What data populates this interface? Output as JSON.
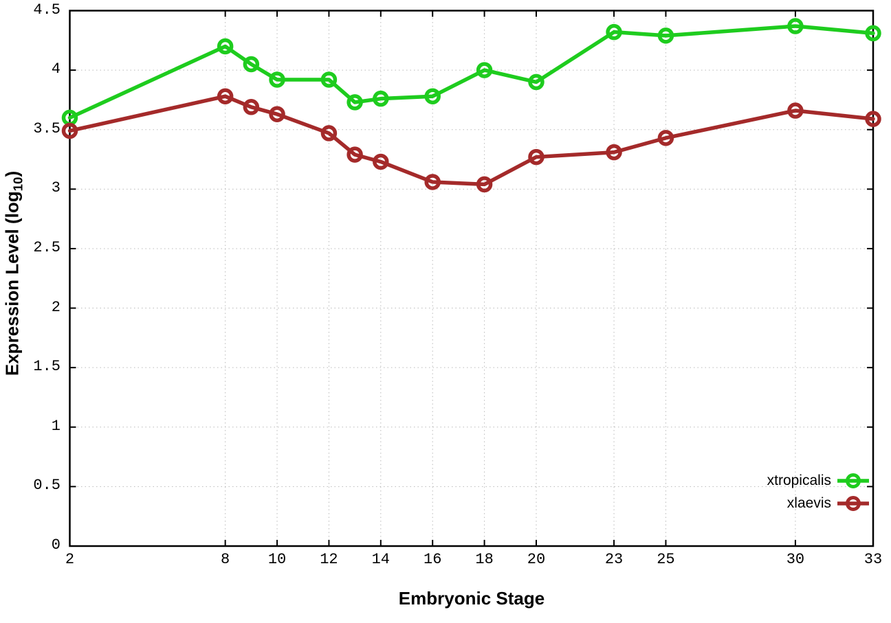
{
  "chart_data": {
    "type": "line",
    "title": "",
    "xlabel": "Embryonic Stage",
    "ylabel_main": "Expression Level (log",
    "ylabel_sub": "10",
    "ylabel_end": ")",
    "xlim": [
      2,
      33
    ],
    "ylim": [
      0,
      4.5
    ],
    "grid": true,
    "legend_position": "bottom-right",
    "x": [
      2,
      8,
      9,
      10,
      12,
      13,
      14,
      16,
      18,
      20,
      23,
      25,
      30,
      33
    ],
    "x_ticks": [
      2,
      8,
      10,
      12,
      14,
      16,
      18,
      20,
      23,
      25,
      30,
      33
    ],
    "x_tick_labels": [
      "2",
      "8",
      "10",
      "12",
      "14",
      "16",
      "18",
      "20",
      "23",
      "25",
      "30",
      "33"
    ],
    "y_ticks": [
      0,
      0.5,
      1,
      1.5,
      2,
      2.5,
      3,
      3.5,
      4,
      4.5
    ],
    "y_tick_labels": [
      "0",
      "0.5",
      "1",
      "1.5",
      "2",
      "2.5",
      "3",
      "3.5",
      "4",
      "4.5"
    ],
    "series": [
      {
        "name": "xtropicalis",
        "color": "#1ecc1e",
        "values": [
          3.6,
          4.2,
          4.05,
          3.92,
          3.92,
          3.73,
          3.76,
          3.78,
          4.0,
          3.9,
          4.32,
          4.29,
          4.37,
          4.31
        ]
      },
      {
        "name": "xlaevis",
        "color": "#a42a2a",
        "values": [
          3.49,
          3.78,
          3.69,
          3.63,
          3.47,
          3.29,
          3.23,
          3.06,
          3.04,
          3.27,
          3.31,
          3.43,
          3.66,
          3.59
        ]
      }
    ]
  },
  "colors": {
    "background": "#ffffff",
    "axis": "#000000",
    "grid": "#b9b9b9"
  }
}
